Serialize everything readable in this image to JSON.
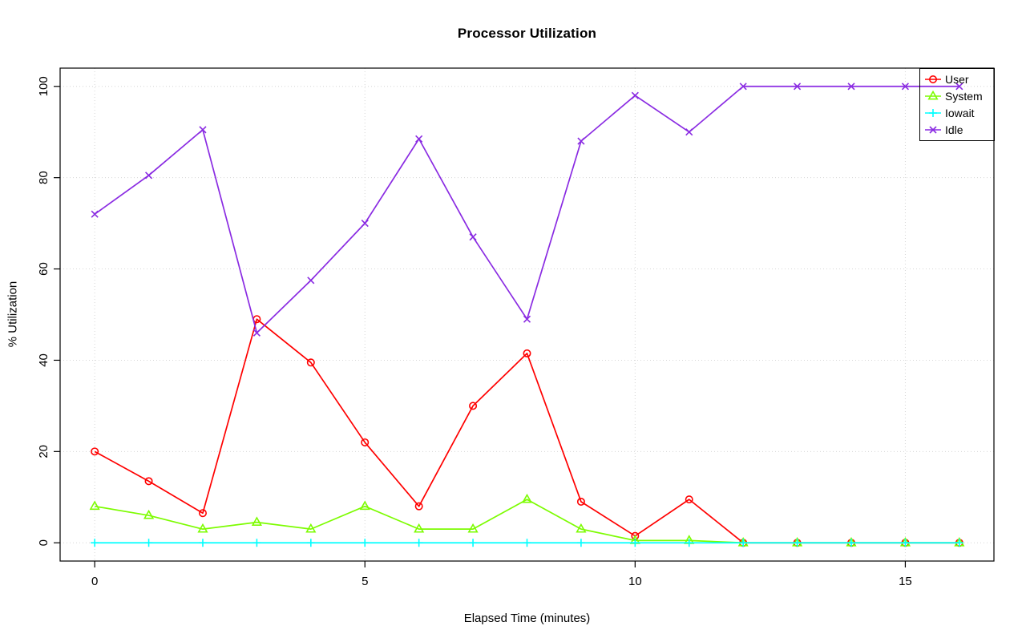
{
  "chart_data": {
    "type": "line",
    "title": "Processor Utilization",
    "xlabel": "Elapsed Time (minutes)",
    "ylabel": "% Utilization",
    "xlim": [
      0,
      16
    ],
    "ylim": [
      0,
      100
    ],
    "x_ticks": [
      0,
      5,
      10,
      15
    ],
    "y_ticks": [
      0,
      20,
      40,
      60,
      80,
      100
    ],
    "grid": true,
    "grid_color": "#D6D6D6",
    "legend_position": "top-right",
    "x": [
      0,
      1,
      2,
      3,
      4,
      5,
      6,
      7,
      8,
      9,
      10,
      11,
      12,
      13,
      14,
      15,
      16
    ],
    "series": [
      {
        "name": "User",
        "color": "#FF0000",
        "marker": "circle",
        "values": [
          20,
          13.5,
          6.5,
          49,
          39.5,
          22,
          8,
          30,
          41.5,
          9,
          1.5,
          9.5,
          0,
          0,
          0,
          0,
          0
        ]
      },
      {
        "name": "System",
        "color": "#7CFC00",
        "marker": "triangle",
        "values": [
          8,
          6,
          3,
          4.5,
          3,
          8,
          3,
          3,
          9.5,
          3,
          0.5,
          0.5,
          0,
          0,
          0,
          0,
          0
        ]
      },
      {
        "name": "Iowait",
        "color": "#00FFFF",
        "marker": "plus",
        "values": [
          0,
          0,
          0,
          0,
          0,
          0,
          0,
          0,
          0,
          0,
          0,
          0,
          0,
          0,
          0,
          0,
          0
        ]
      },
      {
        "name": "Idle",
        "color": "#8A2BE2",
        "marker": "x",
        "values": [
          72,
          80.5,
          90.5,
          46,
          57.5,
          70,
          88.5,
          67,
          49,
          88,
          98,
          90,
          100,
          100,
          100,
          100,
          100
        ]
      }
    ]
  }
}
